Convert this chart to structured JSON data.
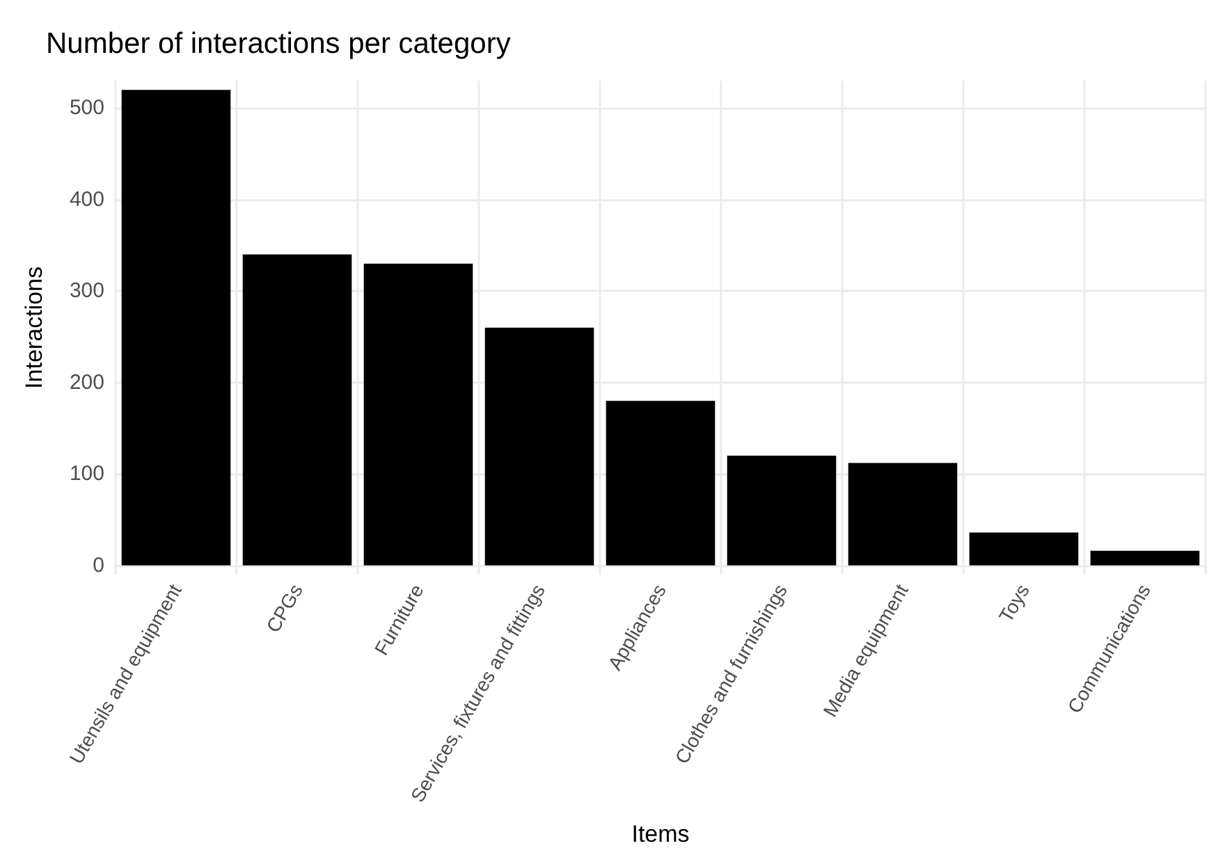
{
  "chart_data": {
    "type": "bar",
    "title": "Number of interactions per category",
    "xlabel": "Items",
    "ylabel": "Interactions",
    "categories": [
      "Utensils and equipment",
      "CPGs",
      "Furniture",
      "Services, fixtures and fittings",
      "Appliances",
      "Clothes and furnishings",
      "Media equipment",
      "Toys",
      "Communications"
    ],
    "values": [
      520,
      340,
      330,
      260,
      180,
      120,
      112,
      36,
      16
    ],
    "color": "#000000",
    "ylim": [
      -10,
      530
    ],
    "yticks": [
      0,
      100,
      200,
      300,
      400,
      500
    ],
    "grid": true
  }
}
